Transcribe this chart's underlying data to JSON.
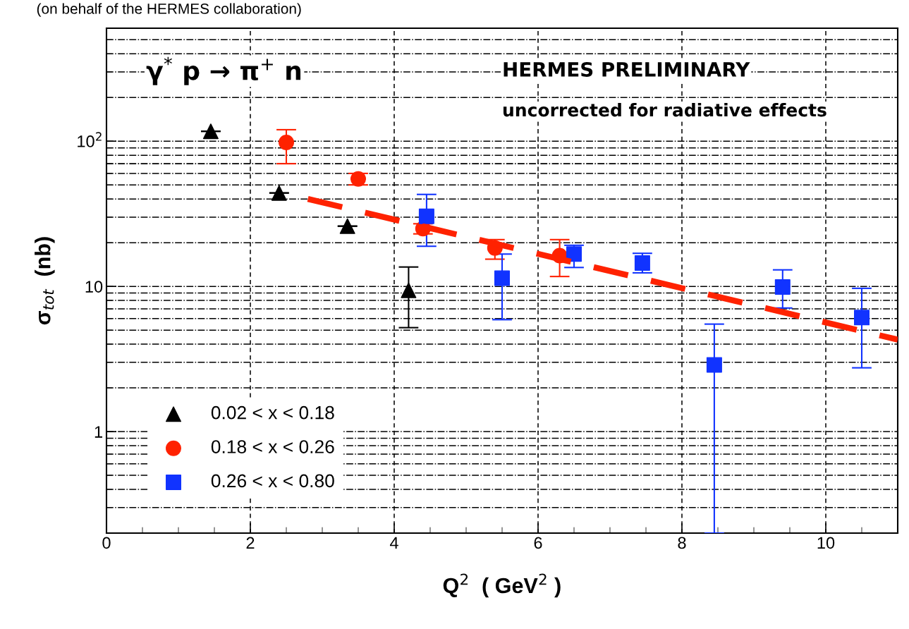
{
  "chart_data": {
    "type": "scatter",
    "xlabel": "Q$^{2}$  ( GeV$^{2}$ )",
    "ylabel": "σ$_{tot}$  (nb)",
    "annotations": [
      "(on behalf of the HERMES collaboration)",
      "γ$^{*}$ p → π$^{+}$ n",
      "HERMES PRELIMINARY",
      "uncorrected for radiative effects"
    ],
    "xlim": [
      0,
      11
    ],
    "xticks": [
      0,
      2,
      4,
      6,
      8,
      10
    ],
    "ylim": [
      0.2,
      600
    ],
    "yticks": [
      1,
      10,
      {
        "value": 100,
        "label": "10$^{2}$"
      }
    ],
    "log": "y",
    "grid": true,
    "legend": "bottom left",
    "series": [
      {
        "name": "0.02 < x < 0.18",
        "color": "#000000",
        "marker": "triangle",
        "x": [
          1.45,
          2.4,
          3.35,
          4.2
        ],
        "values": [
          117,
          44,
          26,
          9.4
        ],
        "errors": [
          null,
          null,
          null,
          [
            5.2,
            13.6
          ]
        ]
      },
      {
        "name": "0.18 < x < 0.26",
        "color": "#ff2200",
        "marker": "circle",
        "x": [
          2.5,
          3.5,
          4.4,
          5.4,
          6.3
        ],
        "values": [
          98,
          55,
          25,
          18.4,
          16.3
        ],
        "errors": [
          [
            70,
            120
          ],
          [
            50,
            60
          ],
          [
            23,
            27
          ],
          [
            15.4,
            21
          ],
          [
            11.7,
            21
          ]
        ]
      },
      {
        "name": "0.26 < x < 0.80",
        "color": "#1133ff",
        "marker": "square",
        "x": [
          4.45,
          5.5,
          6.5,
          7.45,
          8.45,
          9.4,
          10.5
        ],
        "values": [
          30.4,
          11.4,
          16.7,
          14.5,
          2.88,
          9.9,
          6.1
        ],
        "errors": [
          [
            18.9,
            43
          ],
          [
            5.9,
            16.7
          ],
          [
            13.5,
            19.2
          ],
          [
            12.4,
            16.9
          ],
          [
            0.2,
            5.5
          ],
          [
            7.1,
            13
          ],
          [
            2.75,
            9.7
          ]
        ]
      },
      {
        "type": "line",
        "color": "#ff2200",
        "line_style": "dashed",
        "x": [
          2.8,
          11
        ],
        "values": [
          40,
          4.3
        ]
      }
    ]
  }
}
